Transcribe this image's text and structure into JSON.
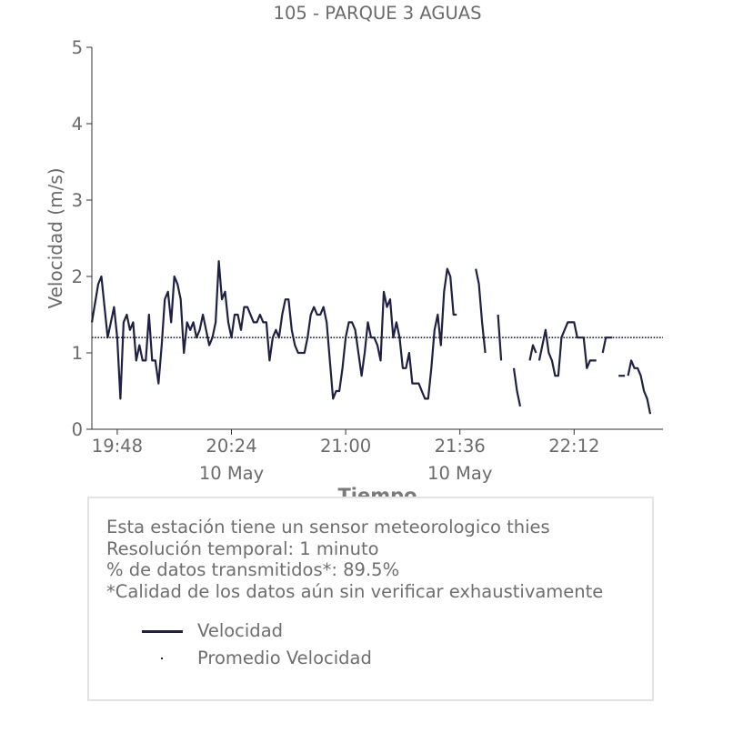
{
  "chart_data": {
    "type": "line",
    "title": "105 - PARQUE 3 AGUAS",
    "xlabel": "Tiempo",
    "ylabel": "Velocidad (m/s)",
    "ylim": [
      0,
      5
    ],
    "yticks": [
      "0",
      "1",
      "2",
      "3",
      "4",
      "5"
    ],
    "xticks": [
      "19:48",
      "20:24",
      "21:00",
      "21:36",
      "22:12"
    ],
    "xtick_dates": [
      "10 May",
      "10 May"
    ],
    "x_start": "19:40",
    "x_end": "22:40",
    "grid": false,
    "colors": {
      "series": "#1f2142",
      "text": "#6b6b6b"
    },
    "series": [
      {
        "name": "Velocidad",
        "style": "solid",
        "segments": [
          [
            [
              "19:40",
              1.4
            ],
            [
              "19:42",
              1.9
            ],
            [
              "19:43",
              2.0
            ],
            [
              "19:45",
              1.2
            ],
            [
              "19:47",
              1.6
            ],
            [
              "19:48",
              1.2
            ],
            [
              "19:49",
              0.4
            ],
            [
              "19:50",
              1.4
            ],
            [
              "19:51",
              1.5
            ],
            [
              "19:52",
              1.3
            ],
            [
              "19:53",
              1.4
            ],
            [
              "19:54",
              0.9
            ],
            [
              "19:55",
              1.1
            ],
            [
              "19:56",
              0.9
            ],
            [
              "19:57",
              0.9
            ],
            [
              "19:58",
              1.5
            ],
            [
              "19:59",
              0.9
            ],
            [
              "20:00",
              0.9
            ],
            [
              "20:01",
              0.6
            ],
            [
              "20:02",
              1.1
            ],
            [
              "20:03",
              1.7
            ],
            [
              "20:04",
              1.8
            ],
            [
              "20:05",
              1.4
            ],
            [
              "20:06",
              2.0
            ],
            [
              "20:07",
              1.9
            ],
            [
              "20:08",
              1.7
            ],
            [
              "20:09",
              1.0
            ],
            [
              "20:10",
              1.4
            ],
            [
              "20:11",
              1.3
            ],
            [
              "20:12",
              1.4
            ],
            [
              "20:13",
              1.2
            ],
            [
              "20:14",
              1.3
            ],
            [
              "20:15",
              1.5
            ],
            [
              "20:16",
              1.3
            ],
            [
              "20:17",
              1.1
            ],
            [
              "20:18",
              1.2
            ],
            [
              "20:19",
              1.4
            ],
            [
              "20:20",
              2.2
            ],
            [
              "20:21",
              1.7
            ],
            [
              "20:22",
              1.8
            ],
            [
              "20:23",
              1.4
            ],
            [
              "20:24",
              1.2
            ],
            [
              "20:25",
              1.5
            ],
            [
              "20:26",
              1.5
            ],
            [
              "20:27",
              1.3
            ],
            [
              "20:28",
              1.6
            ],
            [
              "20:29",
              1.6
            ],
            [
              "20:31",
              1.4
            ],
            [
              "20:32",
              1.4
            ],
            [
              "20:33",
              1.5
            ],
            [
              "20:34",
              1.4
            ],
            [
              "20:35",
              1.4
            ],
            [
              "20:36",
              0.9
            ],
            [
              "20:37",
              1.2
            ],
            [
              "20:38",
              1.3
            ],
            [
              "20:39",
              1.2
            ],
            [
              "20:40",
              1.5
            ],
            [
              "20:41",
              1.7
            ],
            [
              "20:42",
              1.7
            ],
            [
              "20:43",
              1.3
            ],
            [
              "20:44",
              1.1
            ],
            [
              "20:45",
              1.0
            ],
            [
              "20:47",
              1.0
            ],
            [
              "20:48",
              1.2
            ],
            [
              "20:49",
              1.5
            ],
            [
              "20:50",
              1.6
            ],
            [
              "20:51",
              1.5
            ],
            [
              "20:52",
              1.5
            ],
            [
              "20:53",
              1.6
            ],
            [
              "20:54",
              1.4
            ],
            [
              "20:55",
              0.9
            ],
            [
              "20:56",
              0.4
            ],
            [
              "20:57",
              0.5
            ],
            [
              "20:58",
              0.5
            ],
            [
              "20:59",
              0.8
            ],
            [
              "21:00",
              1.2
            ],
            [
              "21:01",
              1.4
            ],
            [
              "21:02",
              1.4
            ],
            [
              "21:03",
              1.3
            ],
            [
              "21:04",
              1.0
            ],
            [
              "21:05",
              0.7
            ],
            [
              "21:06",
              1.0
            ],
            [
              "21:07",
              1.4
            ],
            [
              "21:08",
              1.2
            ],
            [
              "21:09",
              1.2
            ],
            [
              "21:10",
              1.1
            ],
            [
              "21:11",
              0.9
            ],
            [
              "21:12",
              1.8
            ],
            [
              "21:13",
              1.6
            ],
            [
              "21:14",
              1.7
            ],
            [
              "21:15",
              1.2
            ],
            [
              "21:16",
              1.4
            ],
            [
              "21:17",
              1.2
            ],
            [
              "21:18",
              0.8
            ],
            [
              "21:19",
              0.8
            ],
            [
              "21:20",
              1.0
            ],
            [
              "21:21",
              0.6
            ],
            [
              "21:22",
              0.6
            ],
            [
              "21:23",
              0.6
            ],
            [
              "21:24",
              0.5
            ],
            [
              "21:25",
              0.4
            ],
            [
              "21:26",
              0.4
            ],
            [
              "21:27",
              0.8
            ],
            [
              "21:28",
              1.3
            ],
            [
              "21:29",
              1.5
            ],
            [
              "21:30",
              1.1
            ],
            [
              "21:31",
              1.8
            ],
            [
              "21:32",
              2.1
            ],
            [
              "21:33",
              2.0
            ],
            [
              "21:34",
              1.5
            ],
            [
              "21:35",
              1.5
            ]
          ],
          [
            [
              "21:41",
              2.1
            ],
            [
              "21:42",
              1.9
            ],
            [
              "21:43",
              1.4
            ],
            [
              "21:44",
              1.0
            ]
          ],
          [
            [
              "21:48",
              1.5
            ],
            [
              "21:49",
              0.9
            ]
          ],
          [
            [
              "21:53",
              0.8
            ],
            [
              "21:54",
              0.5
            ],
            [
              "21:55",
              0.3
            ]
          ],
          [
            [
              "21:58",
              0.9
            ],
            [
              "21:59",
              1.1
            ],
            [
              "22:00",
              1.0
            ]
          ],
          [
            [
              "22:01",
              0.9
            ],
            [
              "22:02",
              1.1
            ],
            [
              "22:03",
              1.3
            ],
            [
              "22:04",
              1.0
            ],
            [
              "22:05",
              0.9
            ],
            [
              "22:06",
              0.7
            ],
            [
              "22:07",
              0.7
            ],
            [
              "22:08",
              1.2
            ],
            [
              "22:09",
              1.3
            ],
            [
              "22:10",
              1.4
            ],
            [
              "22:12",
              1.4
            ],
            [
              "22:13",
              1.2
            ],
            [
              "22:14",
              1.2
            ],
            [
              "22:15",
              1.2
            ],
            [
              "22:16",
              0.8
            ],
            [
              "22:17",
              0.9
            ],
            [
              "22:19",
              0.9
            ]
          ],
          [
            [
              "22:21",
              1.0
            ],
            [
              "22:22",
              1.2
            ],
            [
              "22:24",
              1.2
            ]
          ],
          [
            [
              "22:26",
              0.7
            ],
            [
              "22:28",
              0.7
            ]
          ],
          [
            [
              "22:29",
              0.7
            ],
            [
              "22:30",
              0.9
            ],
            [
              "22:31",
              0.8
            ],
            [
              "22:32",
              0.8
            ],
            [
              "22:33",
              0.7
            ],
            [
              "22:34",
              0.5
            ],
            [
              "22:35",
              0.4
            ],
            [
              "22:36",
              0.2
            ]
          ]
        ]
      },
      {
        "name": "Promedio Velocidad",
        "style": "dotted",
        "value": 1.2
      }
    ]
  },
  "info": {
    "lines": [
      "Esta estación tiene un sensor meteorologico thies",
      "Resolución temporal: 1 minuto",
      "% de datos transmitidos*: 89.5%",
      "*Calidad de los datos aún sin verificar exhaustivamente"
    ]
  }
}
